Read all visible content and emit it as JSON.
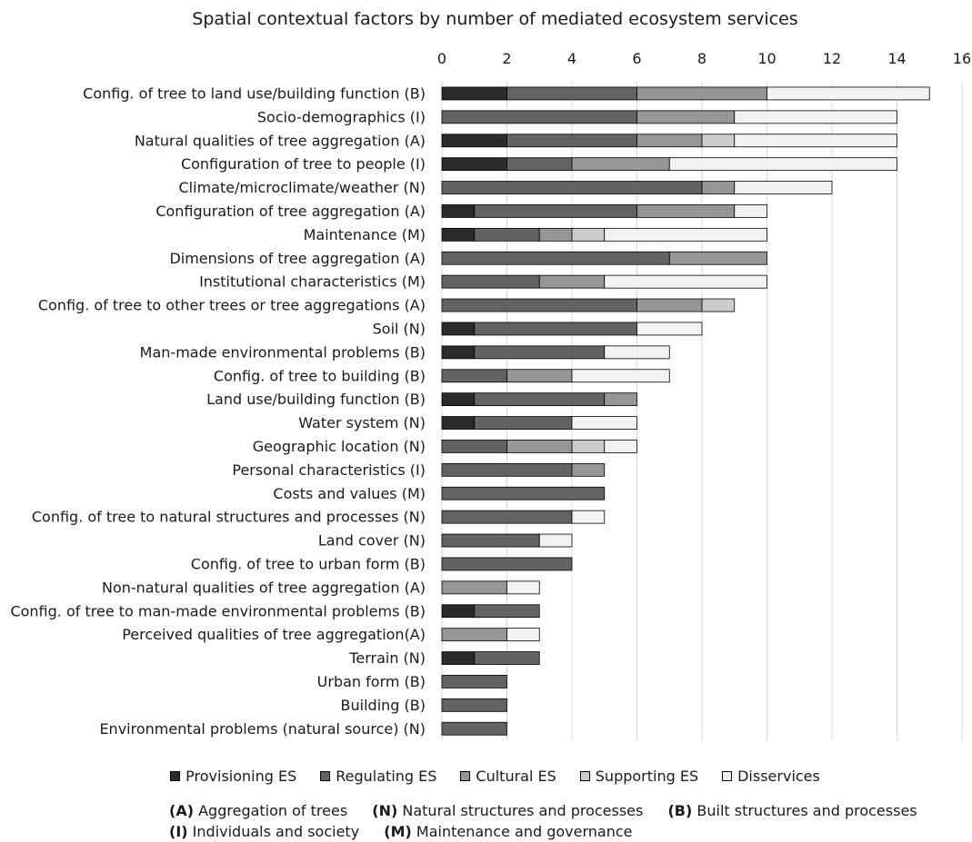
{
  "chart_data": {
    "type": "bar",
    "orientation": "horizontal",
    "stacked": true,
    "title": "Spatial contextual factors by number of mediated ecosystem services",
    "xlim": [
      0,
      16
    ],
    "xticks": [
      "0",
      "2",
      "4",
      "6",
      "8",
      "10",
      "12",
      "14",
      "16"
    ],
    "grid": true,
    "legend_position": "bottom",
    "categories": [
      "Config. of tree to land use/building function (B)",
      "Socio-demographics (I)",
      "Natural qualities of tree aggregation (A)",
      "Configuration of tree to people (I)",
      "Climate/microclimate/weather (N)",
      "Configuration of tree aggregation (A)",
      "Maintenance (M)",
      "Dimensions of tree aggregation (A)",
      "Institutional characteristics (M)",
      "Config. of tree to other trees or tree aggregations (A)",
      "Soil (N)",
      "Man-made environmental problems (B)",
      "Config. of tree to building (B)",
      "Land use/building function (B)",
      "Water system (N)",
      "Geographic location (N)",
      "Personal characteristics (I)",
      "Costs and values (M)",
      "Config. of tree to natural structures and processes (N)",
      "Land cover (N)",
      "Config. of tree to urban form (B)",
      "Non-natural qualities of tree aggregation (A)",
      "Config. of tree to man-made environmental problems (B)",
      "Perceived qualities of tree aggregation(A)",
      "Terrain (N)",
      "Urban form (B)",
      "Building (B)",
      "Environmental problems (natural source) (N)"
    ],
    "series": [
      {
        "name": "Provisioning ES",
        "color": "#2b2b2b",
        "values": [
          2,
          0,
          2,
          2,
          0,
          1,
          1,
          0,
          0,
          0,
          1,
          1,
          0,
          1,
          1,
          0,
          0,
          0,
          0,
          0,
          0,
          0,
          1,
          0,
          1,
          0,
          0,
          0
        ]
      },
      {
        "name": "Regulating ES",
        "color": "#636363",
        "values": [
          4,
          6,
          4,
          2,
          8,
          5,
          2,
          7,
          3,
          6,
          5,
          4,
          2,
          4,
          3,
          2,
          4,
          5,
          4,
          3,
          4,
          0,
          2,
          0,
          2,
          2,
          2,
          2
        ]
      },
      {
        "name": "Cultural ES",
        "color": "#969696",
        "values": [
          4,
          3,
          2,
          3,
          1,
          3,
          1,
          3,
          2,
          2,
          0,
          0,
          2,
          1,
          0,
          2,
          1,
          0,
          0,
          0,
          0,
          2,
          0,
          2,
          0,
          0,
          0,
          0
        ]
      },
      {
        "name": "Supporting ES",
        "color": "#cccccc",
        "values": [
          0,
          0,
          1,
          0,
          0,
          0,
          1,
          0,
          0,
          1,
          0,
          0,
          0,
          0,
          0,
          1,
          0,
          0,
          0,
          0,
          0,
          0,
          0,
          0,
          0,
          0,
          0,
          0
        ]
      },
      {
        "name": "Disservices",
        "color": "#f2f2f2",
        "values": [
          5,
          5,
          5,
          7,
          3,
          1,
          5,
          0,
          5,
          0,
          2,
          2,
          3,
          0,
          2,
          1,
          0,
          0,
          1,
          1,
          0,
          1,
          0,
          1,
          0,
          0,
          0,
          0
        ]
      }
    ]
  },
  "notes": [
    {
      "key": "(A)",
      "text": "Aggregation of trees"
    },
    {
      "key": "(N)",
      "text": "Natural structures and processes"
    },
    {
      "key": "(B)",
      "text": "Built structures and processes"
    },
    {
      "key": "(I)",
      "text": "Individuals and society"
    },
    {
      "key": "(M)",
      "text": "Maintenance and governance"
    }
  ]
}
